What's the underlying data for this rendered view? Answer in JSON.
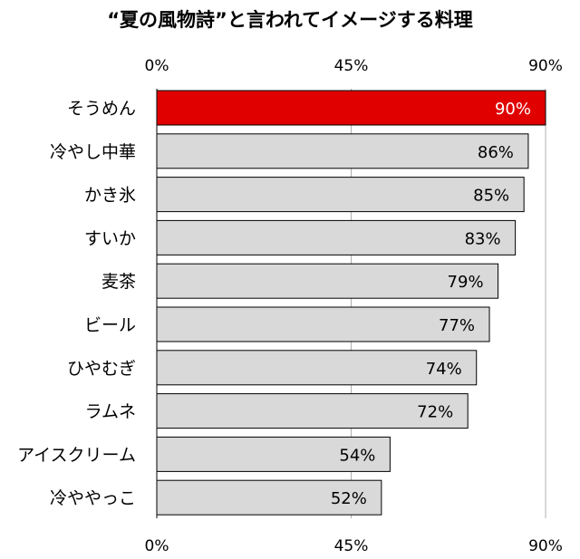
{
  "chart_data": {
    "type": "bar",
    "orientation": "horizontal",
    "title": "“夏の風物詩”と言われてイメージする料理",
    "categories": [
      "そうめん",
      "冷やし中華",
      "かき氷",
      "すいか",
      "麦茶",
      "ビール",
      "ひやむぎ",
      "ラムネ",
      "アイスクリーム",
      "冷ややっこ"
    ],
    "values": [
      90,
      86,
      85,
      83,
      79,
      77,
      74,
      72,
      54,
      52
    ],
    "value_labels": [
      "90%",
      "86%",
      "85%",
      "83%",
      "79%",
      "77%",
      "74%",
      "72%",
      "54%",
      "52%"
    ],
    "xlim": [
      0,
      90
    ],
    "ticks": [
      0,
      45,
      90
    ],
    "tick_labels": [
      "0%",
      "45%",
      "90%"
    ],
    "grid": true,
    "axis_labels_position": "top-and-bottom",
    "colors": {
      "highlight_bar": "#e00000",
      "bar": "#d9d9d9",
      "bar_border": "#000000",
      "highlight_label": "#ffffff",
      "label": "#000000",
      "gridline": "#b0b0b0"
    }
  }
}
